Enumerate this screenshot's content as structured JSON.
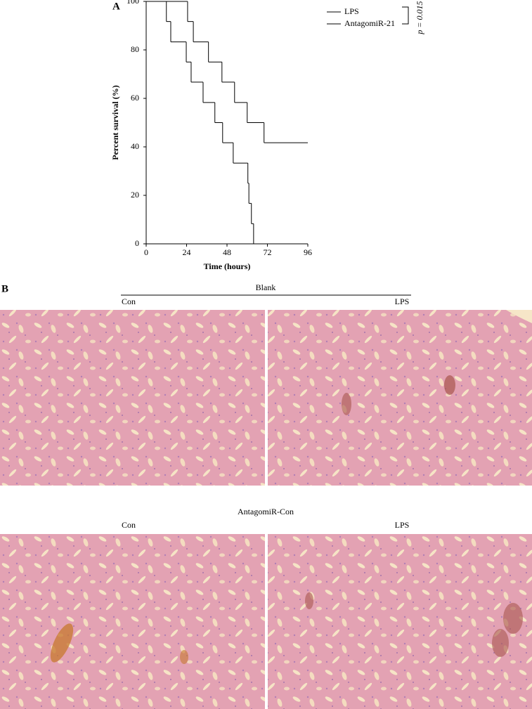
{
  "chart_data": {
    "type": "step-line",
    "x_label": "Time (hours)",
    "y_label": "Percent survival (%)",
    "xlim": [
      0,
      96
    ],
    "xticks": [
      0,
      24,
      48,
      72,
      96
    ],
    "ylim": [
      0,
      100
    ],
    "yticks": [
      0,
      20,
      40,
      60,
      80,
      100
    ],
    "legend": "upper right outside",
    "annotation": "p = 0.015",
    "series": [
      {
        "name": "LPS",
        "color": "#000000",
        "x": [
          0,
          12,
          14.6,
          23.8,
          26.7,
          33.8,
          40.8,
          45.4,
          51.7,
          60.4,
          61,
          62.5,
          63.8
        ],
        "values": [
          100,
          91.7,
          83.3,
          75,
          66.7,
          58.3,
          50,
          41.7,
          33.3,
          25,
          16.7,
          8.3,
          0
        ]
      },
      {
        "name": "AntagomiR-21",
        "color": "#000000",
        "x": [
          0,
          24.6,
          28,
          37,
          45,
          52.5,
          60,
          70,
          96
        ],
        "values": [
          100,
          91.7,
          83.3,
          75,
          66.7,
          58.3,
          50,
          41.7,
          41.7
        ]
      }
    ]
  },
  "figure": {
    "panel_a_label": "A",
    "panel_b_label": "B",
    "groups": [
      {
        "title": "Blank",
        "columns": [
          "Con",
          "LPS"
        ]
      },
      {
        "title": "AntagomiR-Con",
        "columns": [
          "Con",
          "LPS"
        ]
      }
    ]
  }
}
